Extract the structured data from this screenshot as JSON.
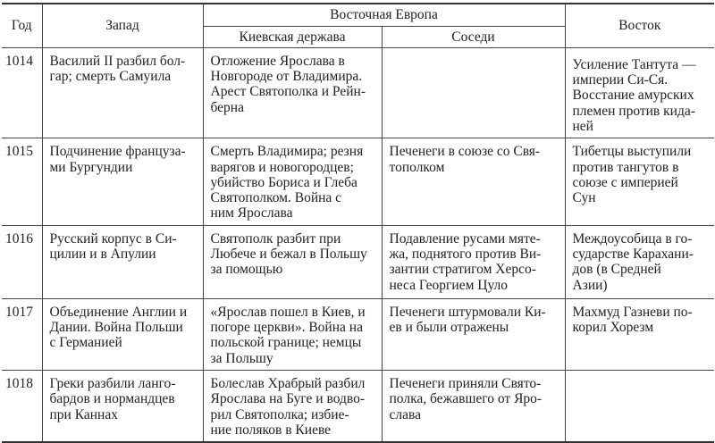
{
  "header": {
    "year": "Год",
    "west": "Запад",
    "east_europe": "Восточная Европа",
    "kiev": "Киевская держава",
    "neighbors": "Соседи",
    "east": "Восток"
  },
  "rows": [
    {
      "year": "1014",
      "west": "Василий II разбил бол-\nгар; смерть Самуила",
      "kiev": "Отложение Ярослава в\nНовгороде от Владимира.\nАрест Святополка и Рейн-\nберна",
      "neighbors": "",
      "east": "Усиление Тантута —\nимперии Си-Ся.\nВосстание амурских\nплемен против кида-\nней"
    },
    {
      "year": "1015",
      "west": "Подчинение француза-\nми Бургундии",
      "kiev": "Смерть Владимира; резня\nварягов и новогородцев;\nубийство Бориса и Глеба\nСвятополком. Война с\nним Ярослава",
      "neighbors": "Печенеги в союзе со Свя-\nтополком",
      "east": "Тибетцы выступили\nпротив тангутов в\nсоюзе с империей\nСун"
    },
    {
      "year": "1016",
      "west": "Русский корпус в Си-\nцилии и в Апулии",
      "kiev": "Святополк разбит при\nЛюбече и бежал в Польшу\nза помощью",
      "neighbors": "Подавление русами мяте-\nжа, поднятого против Ви-\nзантии стратигом Херсо-\nнеса Георгием Цуло",
      "east": "Междоусобица в го-\nсударстве Карахани-\nдов (в Средней\nАзии)"
    },
    {
      "year": "1017",
      "west": "Объединение Англии и\nДании. Война Польши\nс Германией",
      "kiev": "«Ярослав пошел в Киев, и\nпогоре церкви». Война на\nпольской границе; немцы\nза Польшу",
      "neighbors": "Печенеги штурмовали Ки-\nев и были отражены",
      "east": "Махмуд Газневи по-\nкорил Хорезм"
    },
    {
      "year": "1018",
      "west": "Греки разбили ланго-\nбардов и нормандцев\nпри Каннах",
      "kiev": "Болеслав Храбрый разбил\nЯрослава на Буге и водво-\nрил Святополка; избие-\nние поляков в Киеве",
      "neighbors": "Печенеги приняли Свято-\nполка, бежавшего от Яро-\nслава",
      "east": ""
    }
  ]
}
